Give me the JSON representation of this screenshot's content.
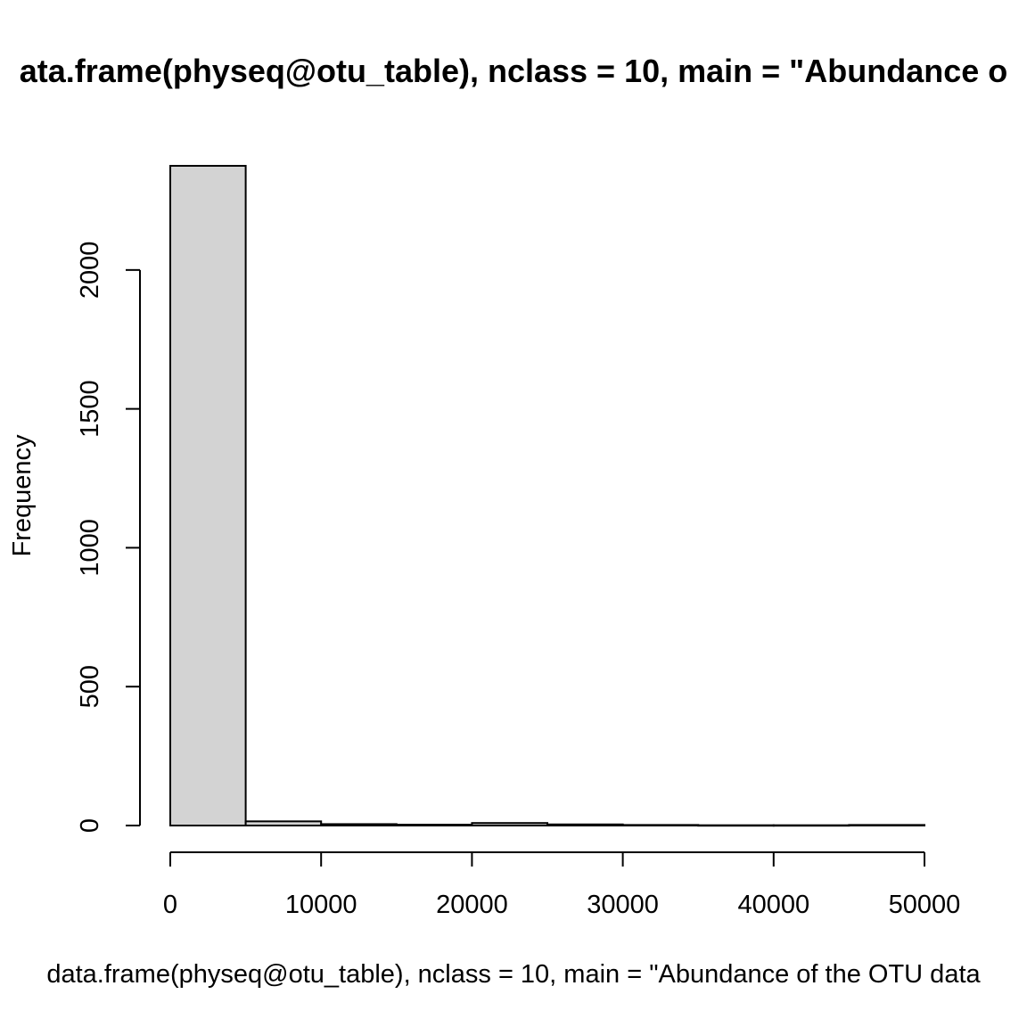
{
  "chart_data": {
    "type": "bar",
    "title": "ata.frame(physeq@otu_table), nclass = 10, main = \"Abundance o",
    "xlabel": "data.frame(physeq@otu_table), nclass = 10, main = \"Abundance of the OTU data",
    "ylabel": "Frequency",
    "bin_edges": [
      0,
      5000,
      10000,
      15000,
      20000,
      25000,
      30000,
      35000,
      40000,
      45000,
      50000
    ],
    "values": [
      2375,
      15,
      5,
      3,
      9,
      4,
      2,
      1,
      1,
      2
    ],
    "xlim": [
      0,
      50000
    ],
    "ylim": [
      0,
      2375
    ],
    "x_ticks": [
      0,
      10000,
      20000,
      30000,
      40000,
      50000
    ],
    "x_tick_labels": [
      "0",
      "10000",
      "20000",
      "30000",
      "40000",
      "50000"
    ],
    "y_ticks": [
      0,
      500,
      1000,
      1500,
      2000
    ],
    "y_tick_labels": [
      "0",
      "500",
      "1000",
      "1500",
      "2000"
    ],
    "bar_fill": "#d3d3d3",
    "bar_stroke": "#000000",
    "grid": false,
    "legend": "none"
  }
}
